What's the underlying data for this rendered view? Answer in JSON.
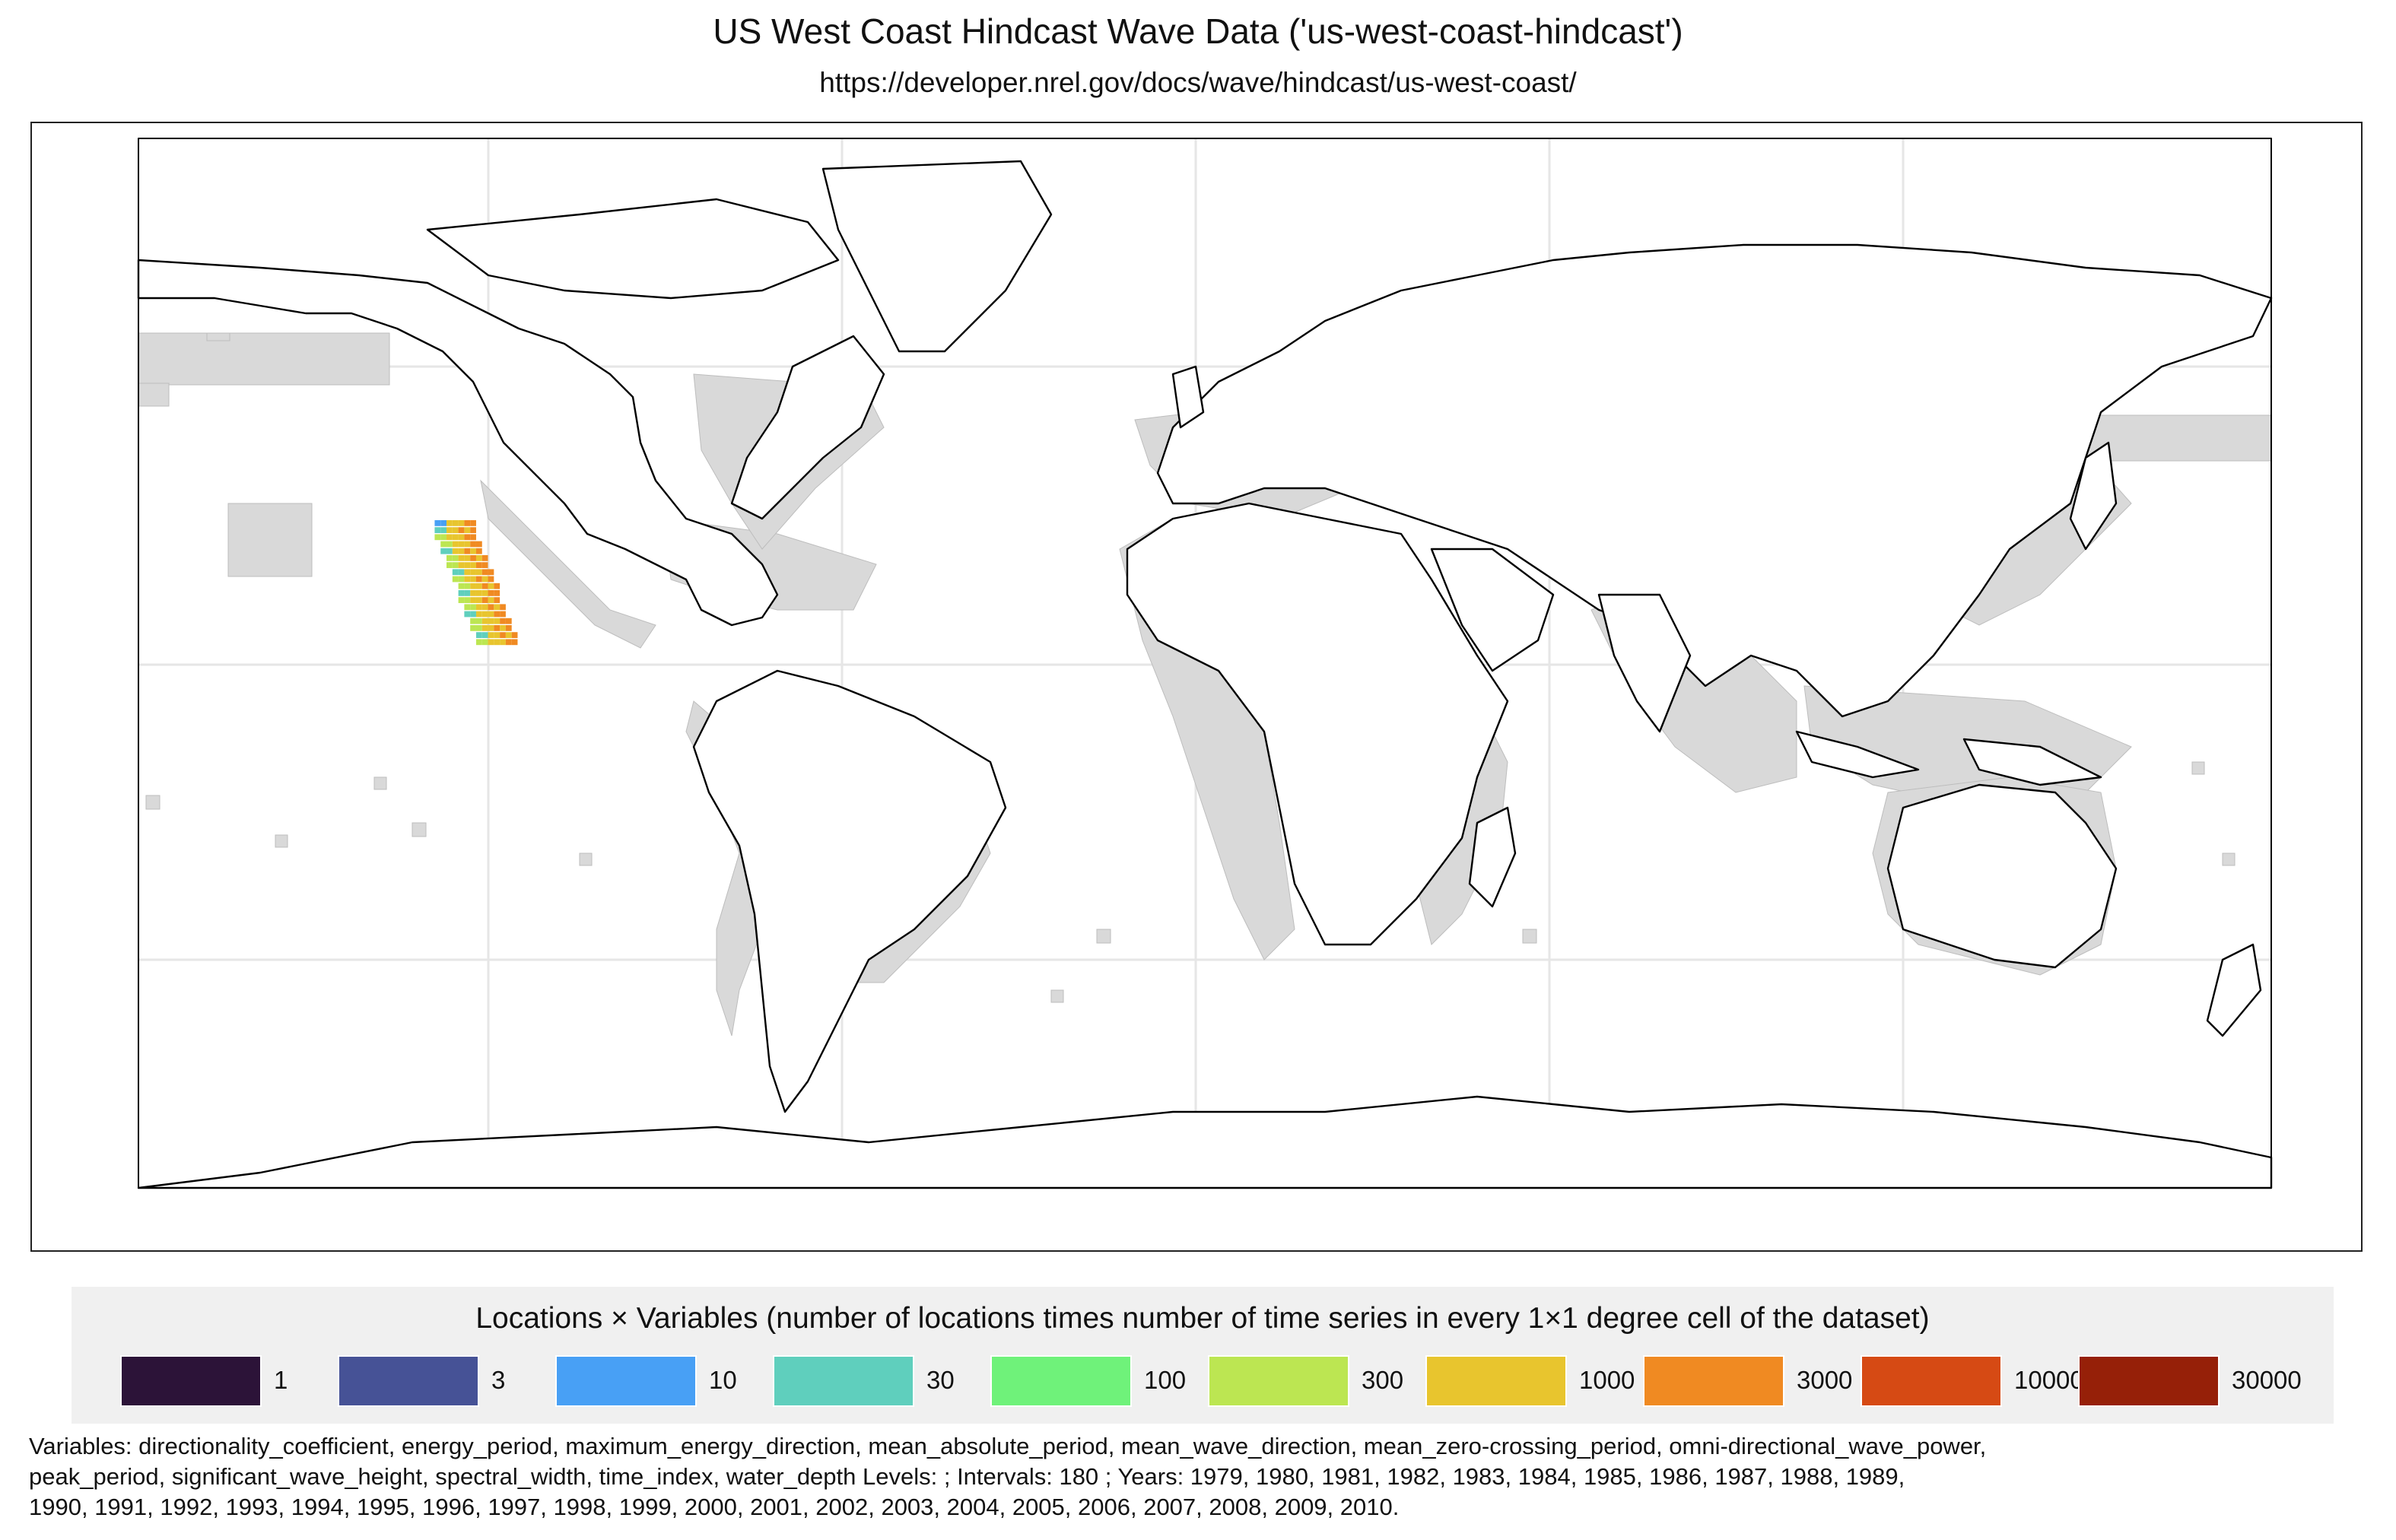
{
  "header": {
    "title": "US West Coast Hindcast Wave Data ('us-west-coast-hindcast')",
    "subtitle": "https://developer.nrel.gov/docs/wave/hindcast/us-west-coast/"
  },
  "map": {
    "projection": "equirectangular",
    "coverage_color": "#d9d9d9",
    "land_outline_color": "#000000",
    "graticule_color": "#e6e6e6",
    "hotspot_region": "US West Coast",
    "hotspot_lon_range": [
      -130,
      -117
    ],
    "hotspot_lat_range": [
      32,
      49
    ],
    "hotspot_dominant_class": "1000-3000"
  },
  "legend": {
    "title": "Locations × Variables (number of locations times number of time series in every 1×1 degree cell of the dataset)",
    "items": [
      {
        "label": "1",
        "color": "#2c1338"
      },
      {
        "label": "3",
        "color": "#465296"
      },
      {
        "label": "10",
        "color": "#48a0f5"
      },
      {
        "label": "30",
        "color": "#5fcfbd"
      },
      {
        "label": "100",
        "color": "#6ff27a"
      },
      {
        "label": "300",
        "color": "#bce652"
      },
      {
        "label": "1000",
        "color": "#e8c52e"
      },
      {
        "label": "3000",
        "color": "#f08a22"
      },
      {
        "label": "10000",
        "color": "#d64a14"
      },
      {
        "label": "30000",
        "color": "#962008"
      }
    ]
  },
  "caption": {
    "line1": "Variables: directionality_coefficient, energy_period, maximum_energy_direction, mean_absolute_period, mean_wave_direction, mean_zero-crossing_period, omni-directional_wave_power,",
    "line2": "peak_period, significant_wave_height, spectral_width, time_index, water_depth Levels: ; Intervals: 180 ; Years: 1979, 1980, 1981, 1982, 1983, 1984, 1985, 1986, 1987, 1988, 1989,",
    "line3": "1990, 1991, 1992, 1993, 1994, 1995, 1996, 1997, 1998, 1999, 2000, 2001, 2002, 2003, 2004, 2005, 2006, 2007, 2008, 2009, 2010."
  }
}
